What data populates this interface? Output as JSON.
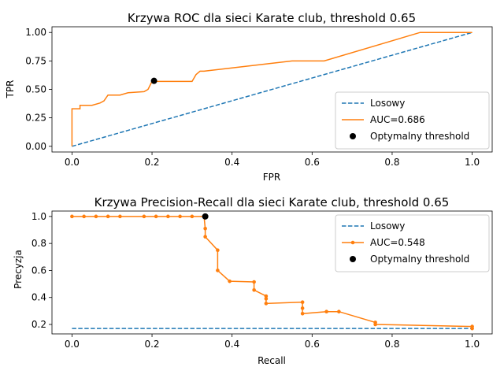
{
  "chart_data": [
    {
      "type": "line",
      "title": "Krzywa ROC dla sieci Karate club, threshold  0.65",
      "xlabel": "FPR",
      "ylabel": "TPR",
      "xlim": [
        -0.05,
        1.05
      ],
      "ylim": [
        -0.05,
        1.05
      ],
      "xticks": [
        "0.0",
        "0.2",
        "0.4",
        "0.6",
        "0.8",
        "1.0"
      ],
      "xtick_values": [
        0,
        0.2,
        0.4,
        0.6,
        0.8,
        1.0
      ],
      "yticks": [
        "0.00",
        "0.25",
        "0.50",
        "0.75",
        "1.00"
      ],
      "ytick_values": [
        0,
        0.25,
        0.5,
        0.75,
        1.0
      ],
      "legend_position": "lower-right",
      "series": [
        {
          "name": "Losowy",
          "style": "dashed",
          "color": "#1f77b4",
          "x": [
            0,
            1
          ],
          "y": [
            0,
            1
          ]
        },
        {
          "name": "AUC=0.686",
          "style": "solid",
          "color": "#ff7f0e",
          "markers": false,
          "x": [
            0,
            0,
            0.02,
            0.02,
            0.04,
            0.05,
            0.07,
            0.08,
            0.09,
            0.11,
            0.12,
            0.14,
            0.18,
            0.19,
            0.2,
            0.24,
            0.3,
            0.31,
            0.32,
            0.33,
            0.55,
            0.63,
            0.87,
            1.0
          ],
          "y": [
            0,
            0.33,
            0.33,
            0.36,
            0.36,
            0.36,
            0.38,
            0.4,
            0.45,
            0.45,
            0.45,
            0.47,
            0.48,
            0.5,
            0.57,
            0.57,
            0.57,
            0.63,
            0.66,
            0.66,
            0.75,
            0.75,
            1.0,
            1.0
          ]
        }
      ],
      "optimal_point": {
        "name": "Optymalny threshold",
        "color": "#000000",
        "x": 0.205,
        "y": 0.575
      }
    },
    {
      "type": "line",
      "title": "Krzywa Precision-Recall dla sieci Karate club, threshold  0.65",
      "xlabel": "Recall",
      "ylabel": "Precyzja",
      "xlim": [
        -0.05,
        1.05
      ],
      "ylim": [
        0.13,
        1.04
      ],
      "xticks": [
        "0.0",
        "0.2",
        "0.4",
        "0.6",
        "0.8",
        "1.0"
      ],
      "xtick_values": [
        0,
        0.2,
        0.4,
        0.6,
        0.8,
        1.0
      ],
      "yticks": [
        "0.2",
        "0.4",
        "0.6",
        "0.8",
        "1.0"
      ],
      "ytick_values": [
        0.2,
        0.4,
        0.6,
        0.8,
        1.0
      ],
      "legend_position": "upper-right",
      "series": [
        {
          "name": "Losowy",
          "style": "dashed",
          "color": "#1f77b4",
          "x": [
            0,
            1
          ],
          "y": [
            0.17,
            0.17
          ]
        },
        {
          "name": "AUC=0.548",
          "style": "solid",
          "color": "#ff7f0e",
          "markers": true,
          "x": [
            0,
            0.03,
            0.06,
            0.09,
            0.12,
            0.18,
            0.21,
            0.24,
            0.27,
            0.3,
            0.33,
            0.333,
            0.333,
            0.364,
            0.364,
            0.394,
            0.455,
            0.455,
            0.485,
            0.485,
            0.485,
            0.576,
            0.576,
            0.576,
            0.636,
            0.667,
            0.758,
            0.758,
            1.0,
            1.0
          ],
          "y": [
            1.0,
            1.0,
            1.0,
            1.0,
            1.0,
            1.0,
            1.0,
            1.0,
            1.0,
            1.0,
            1.0,
            0.91,
            0.85,
            0.75,
            0.6,
            0.52,
            0.515,
            0.455,
            0.41,
            0.39,
            0.355,
            0.365,
            0.32,
            0.28,
            0.295,
            0.295,
            0.215,
            0.2,
            0.185,
            0.17
          ]
        }
      ],
      "optimal_point": {
        "name": "Optymalny threshold",
        "color": "#000000",
        "x": 0.333,
        "y": 1.0
      }
    }
  ]
}
